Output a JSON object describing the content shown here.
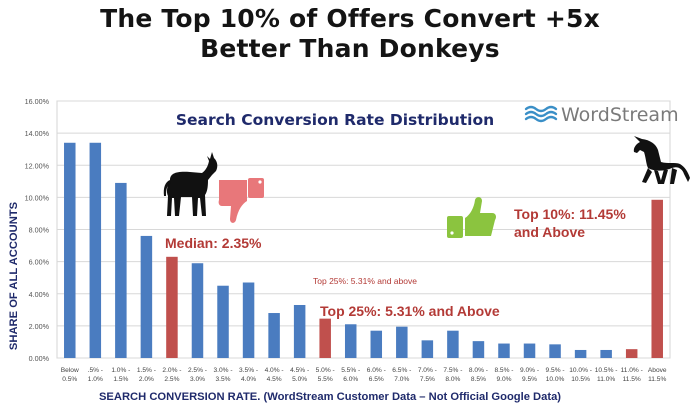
{
  "headline": {
    "line1": "The Top 10% of Offers Convert +5x",
    "line2": "Better Than Donkeys"
  },
  "logo": {
    "text": "WordStream",
    "color": "#3a8fc7",
    "icon": "wordstream-waves-icon"
  },
  "colors": {
    "bar_default": "#4a7cc0",
    "bar_highlight": "#c0504d",
    "annotation": "#b33a36",
    "title": "#1f2a6b",
    "axis_label": "#1f2a6b",
    "thumb_up": "#8bc43f",
    "thumb_down": "#e8777a"
  },
  "annotations": {
    "median": "Median: 2.35%",
    "top25_small": "Top 25%: 5.31% and above",
    "top25": "Top 25%: 5.31% and Above",
    "top10_line1": "Top 10%: 11.45%",
    "top10_line2": "and Above"
  },
  "icons": {
    "donkey": "donkey-icon",
    "unicorn": "unicorn-icon",
    "thumbs_down": "thumbs-down-icon",
    "thumbs_up": "thumbs-up-icon"
  },
  "chart_data": {
    "type": "bar",
    "title": "Search Conversion Rate Distribution",
    "xlabel": "SEARCH CONVERSION RATE.  (WordStream Customer Data – Not Official Google Data)",
    "ylabel": "SHARE OF ALL ACCOUNTS",
    "ylim": [
      0,
      16
    ],
    "yticks": [
      "0.00%",
      "2.00%",
      "4.00%",
      "6.00%",
      "8.00%",
      "10.00%",
      "12.00%",
      "14.00%",
      "16.00%"
    ],
    "grid": true,
    "categories": [
      [
        "Below",
        "0.5%"
      ],
      [
        ".5% -",
        "1.0%"
      ],
      [
        "1.0% -",
        "1.5%"
      ],
      [
        "1.5% -",
        "2.0%"
      ],
      [
        "2.0% -",
        "2.5%"
      ],
      [
        "2.5% -",
        "3.0%"
      ],
      [
        "3.0% -",
        "3.5%"
      ],
      [
        "3.5% -",
        "4.0%"
      ],
      [
        "4.0% -",
        "4.5%"
      ],
      [
        "4.5% -",
        "5.0%"
      ],
      [
        "5.0% -",
        "5.5%"
      ],
      [
        "5.5% -",
        "6.0%"
      ],
      [
        "6.0% -",
        "6.5%"
      ],
      [
        "6.5% -",
        "7.0%"
      ],
      [
        "7.0% -",
        "7.5%"
      ],
      [
        "7.5% -",
        "8.0%"
      ],
      [
        "8.0% -",
        "8.5%"
      ],
      [
        "8.5% -",
        "9.0%"
      ],
      [
        "9.0% -",
        "9.5%"
      ],
      [
        "9.5% -",
        "10.0%"
      ],
      [
        "10.0% -",
        "10.5%"
      ],
      [
        "10.5% -",
        "11.0%"
      ],
      [
        "11.0% -",
        "11.5%"
      ],
      [
        "Above",
        "11.5%"
      ]
    ],
    "values": [
      13.4,
      13.4,
      10.9,
      7.6,
      6.3,
      5.9,
      4.5,
      4.7,
      2.8,
      3.3,
      2.45,
      2.1,
      1.7,
      1.95,
      1.1,
      1.7,
      1.05,
      0.9,
      0.9,
      0.85,
      0.5,
      0.5,
      0.55,
      9.85
    ],
    "highlighted": [
      4,
      10,
      22,
      23
    ]
  }
}
